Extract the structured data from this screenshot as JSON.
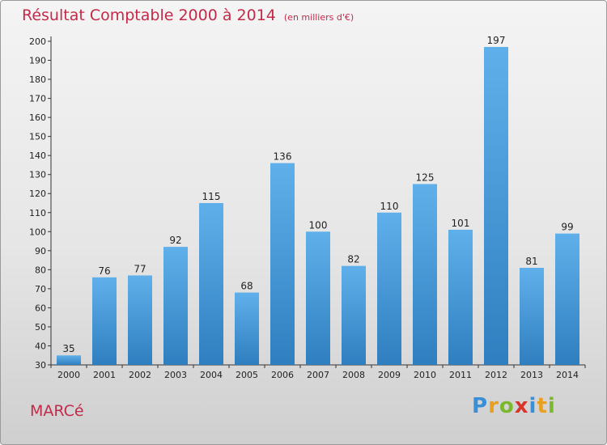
{
  "header": {
    "title": "Résultat Comptable 2000 à 2014",
    "unit": "(en milliers d'€)"
  },
  "footer": {
    "town": "MARCé",
    "brand": "Proxiti"
  },
  "colors": {
    "title": "#c22a4a",
    "bar_top": "#5fb0ea",
    "bar_bottom": "#2f7fc0"
  },
  "chart_data": {
    "type": "bar",
    "categories": [
      "2000",
      "2001",
      "2002",
      "2003",
      "2004",
      "2005",
      "2006",
      "2007",
      "2008",
      "2009",
      "2010",
      "2011",
      "2012",
      "2013",
      "2014"
    ],
    "values": [
      35,
      76,
      77,
      92,
      115,
      68,
      136,
      100,
      82,
      110,
      125,
      101,
      197,
      81,
      99
    ],
    "title": "Résultat Comptable 2000 à 2014",
    "xlabel": "",
    "ylabel": "",
    "ylim": [
      30,
      200
    ],
    "yticks": [
      30,
      40,
      50,
      60,
      70,
      80,
      90,
      100,
      110,
      120,
      130,
      140,
      150,
      160,
      170,
      180,
      190,
      200
    ],
    "grid": false,
    "data_labels": true
  }
}
